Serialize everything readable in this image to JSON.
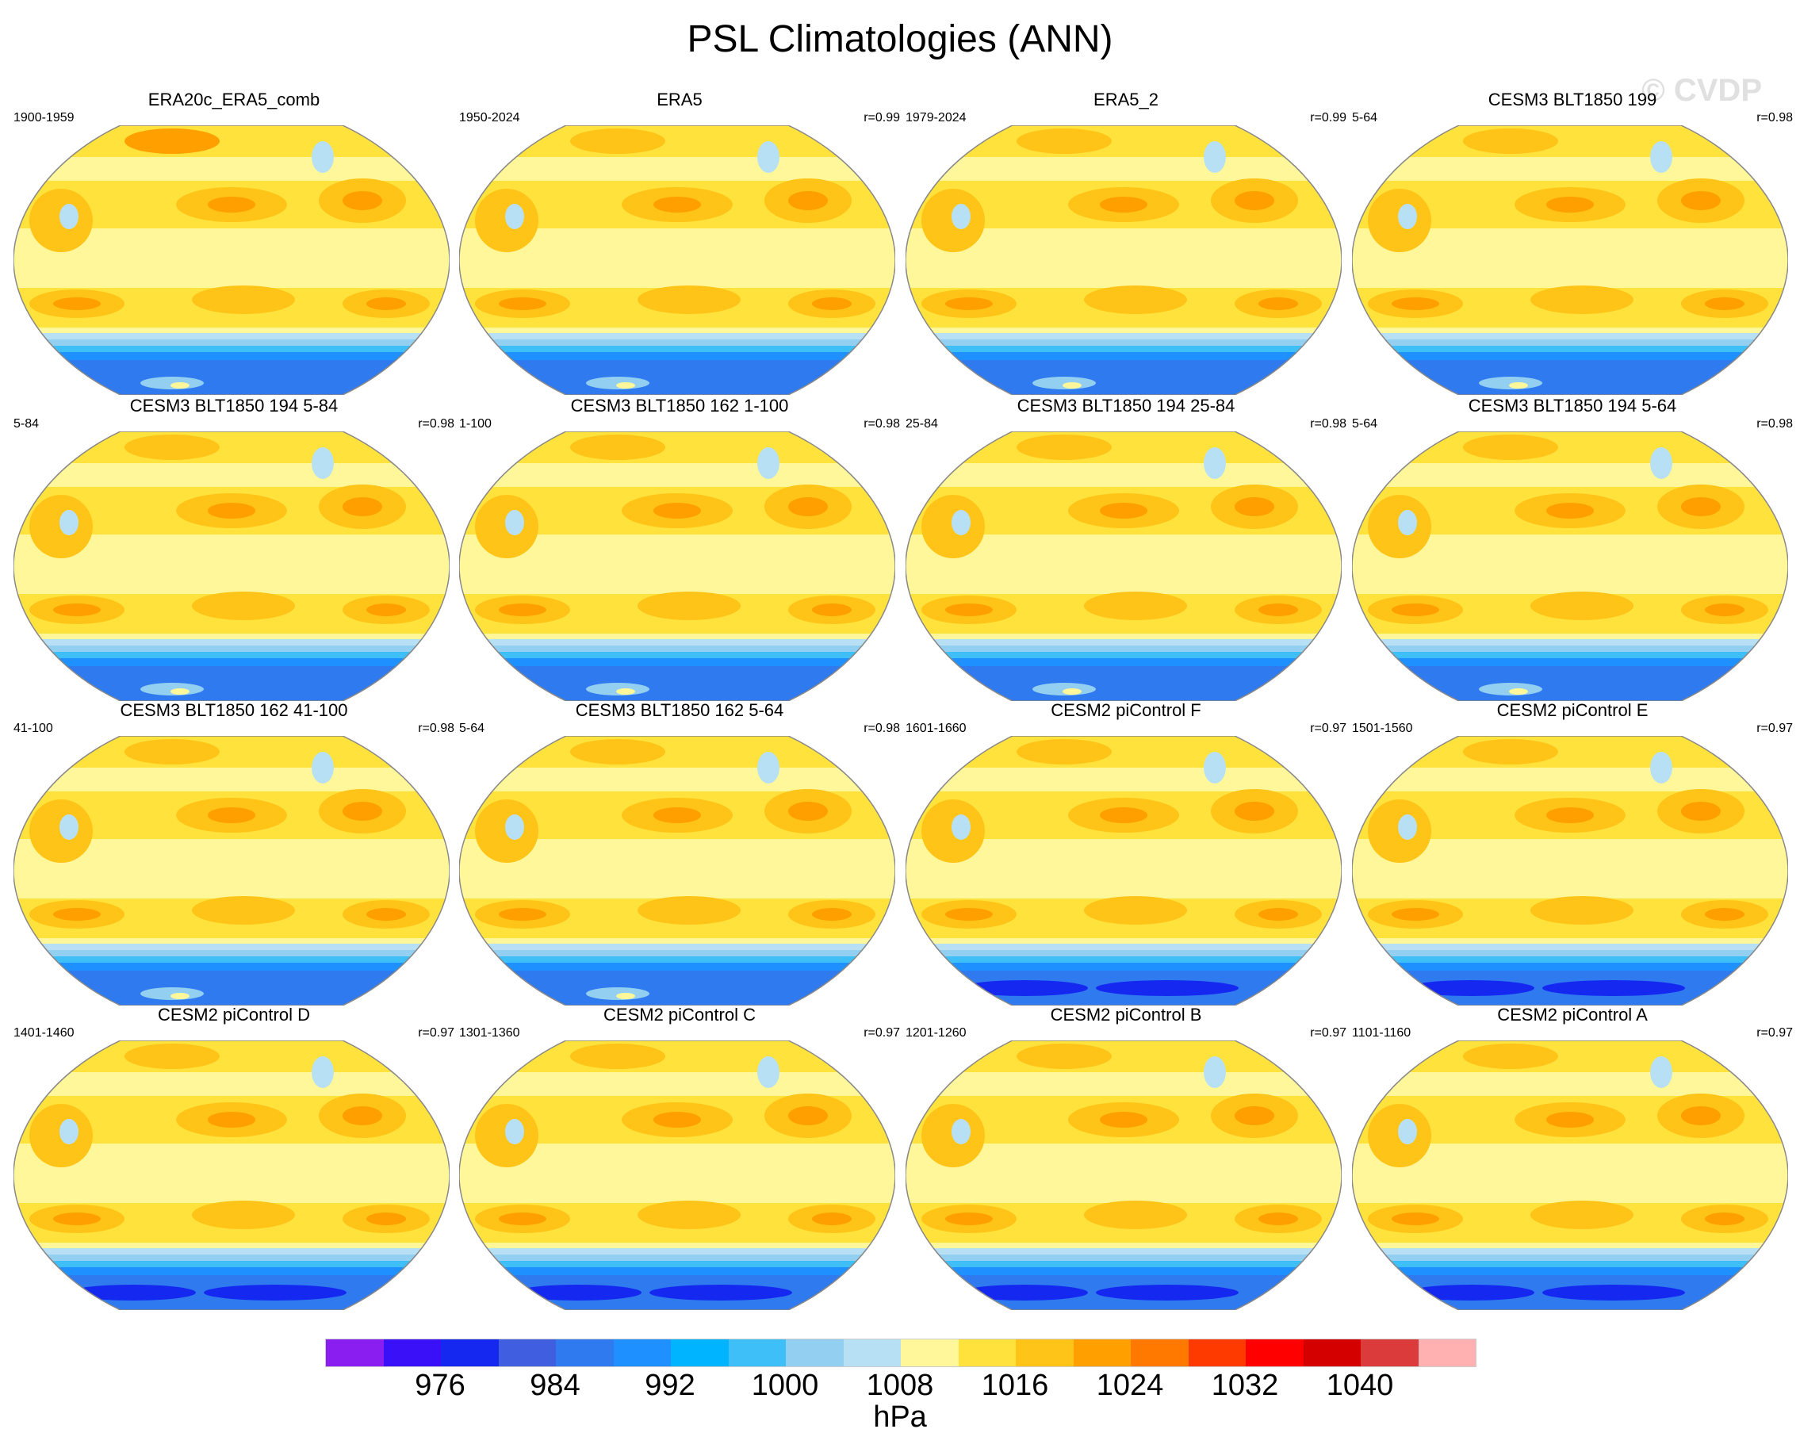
{
  "chart_data": {
    "type": "heatmap",
    "title": "PSL Climatologies (ANN)",
    "watermark": "© CVDP",
    "units": "hPa",
    "colorbar": {
      "levels": [
        972,
        976,
        980,
        984,
        988,
        992,
        996,
        1000,
        1004,
        1008,
        1012,
        1016,
        1020,
        1024,
        1028,
        1032,
        1036,
        1040,
        1044
      ],
      "tick_labels": [
        "976",
        "984",
        "992",
        "1000",
        "1008",
        "1016",
        "1024",
        "1032",
        "1040"
      ],
      "colors": [
        "#8a1ef0",
        "#3a10f8",
        "#1428f0",
        "#3f5fe0",
        "#2f7aef",
        "#1e90ff",
        "#00b4ff",
        "#3fbff8",
        "#92cff0",
        "#b8e0f5",
        "#fff799",
        "#ffe23c",
        "#ffc417",
        "#ff9f00",
        "#ff7800",
        "#ff3a00",
        "#ff0000",
        "#d40000",
        "#db3b3b",
        "#ffb0b0"
      ]
    },
    "panels": [
      {
        "title": "ERA20c_ERA5_comb",
        "years": "1900-1959",
        "r": ""
      },
      {
        "title": "ERA5",
        "years": "1950-2024",
        "r": "r=0.99"
      },
      {
        "title": "ERA5_2",
        "years": "1979-2024",
        "r": "r=0.99"
      },
      {
        "title": "CESM3 BLT1850 199",
        "years": "5-64",
        "r": "r=0.98"
      },
      {
        "title": "CESM3 BLT1850 194 5-84",
        "years": "5-84",
        "r": "r=0.98"
      },
      {
        "title": "CESM3 BLT1850 162 1-100",
        "years": "1-100",
        "r": "r=0.98"
      },
      {
        "title": "CESM3 BLT1850 194 25-84",
        "years": "25-84",
        "r": "r=0.98"
      },
      {
        "title": "CESM3 BLT1850 194 5-64",
        "years": "5-64",
        "r": "r=0.98"
      },
      {
        "title": "CESM3 BLT1850 162 41-100",
        "years": "41-100",
        "r": "r=0.98"
      },
      {
        "title": "CESM3 BLT1850 162 5-64",
        "years": "5-64",
        "r": "r=0.98"
      },
      {
        "title": "CESM2 piControl F",
        "years": "1601-1660",
        "r": "r=0.97"
      },
      {
        "title": "CESM2 piControl E",
        "years": "1501-1560",
        "r": "r=0.97"
      },
      {
        "title": "CESM2 piControl D",
        "years": "1401-1460",
        "r": "r=0.97"
      },
      {
        "title": "CESM2 piControl C",
        "years": "1301-1360",
        "r": "r=0.97"
      },
      {
        "title": "CESM2 piControl B",
        "years": "1201-1260",
        "r": "r=0.97"
      },
      {
        "title": "CESM2 piControl A",
        "years": "1101-1160",
        "r": "r=0.97"
      }
    ]
  }
}
